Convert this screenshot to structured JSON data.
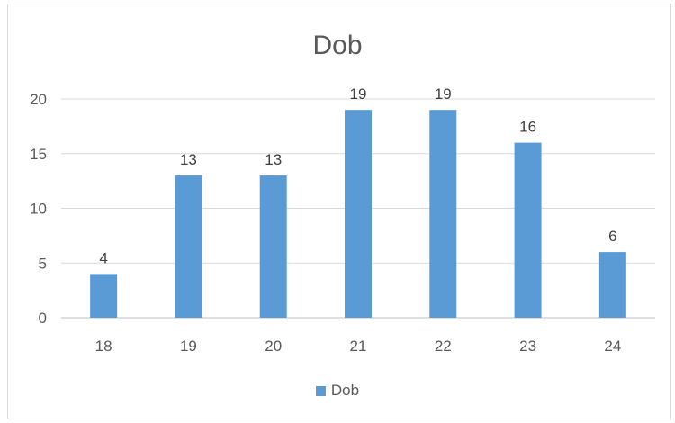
{
  "chart_data": {
    "type": "bar",
    "title": "Dob",
    "categories": [
      "18",
      "19",
      "20",
      "21",
      "22",
      "23",
      "24"
    ],
    "series": [
      {
        "name": "Dob",
        "values": [
          4,
          13,
          13,
          19,
          19,
          16,
          6
        ],
        "color": "#5b9bd5"
      }
    ],
    "ylim": [
      0,
      20
    ],
    "yticks": [
      0,
      5,
      10,
      15,
      20
    ],
    "grid": true,
    "legend": "bottom",
    "data_labels": true
  }
}
